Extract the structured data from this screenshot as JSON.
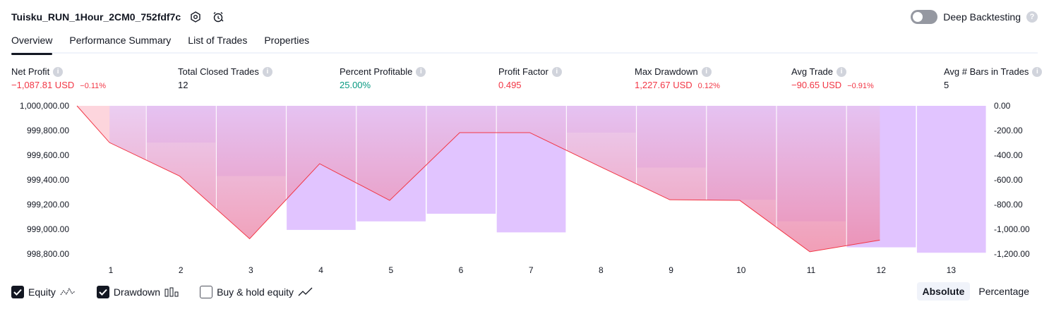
{
  "header": {
    "title": "Tuisku_RUN_1Hour_2CM0_752fdf7c",
    "settings_icon": "settings-hexagon-icon",
    "alarm_icon": "alarm-clock-icon"
  },
  "deep_backtesting": {
    "label": "Deep Backtesting",
    "enabled": false,
    "help": "?"
  },
  "tabs": [
    {
      "label": "Overview",
      "active": true
    },
    {
      "label": "Performance Summary",
      "active": false
    },
    {
      "label": "List of Trades",
      "active": false
    },
    {
      "label": "Properties",
      "active": false
    }
  ],
  "stats": [
    {
      "label": "Net Profit",
      "value": "−1,087.81 USD",
      "pct": "−0.11%",
      "color": "#f23645"
    },
    {
      "label": "Total Closed Trades",
      "value": "12",
      "pct": "",
      "color": "#131722"
    },
    {
      "label": "Percent Profitable",
      "value": "25.00%",
      "pct": "",
      "color": "#089981"
    },
    {
      "label": "Profit Factor",
      "value": "0.495",
      "pct": "",
      "color": "#f23645"
    },
    {
      "label": "Max Drawdown",
      "value": "1,227.67 USD",
      "pct": "0.12%",
      "color": "#f23645"
    },
    {
      "label": "Avg Trade",
      "value": "−90.65 USD",
      "pct": "−0.91%",
      "color": "#f23645"
    },
    {
      "label": "Avg # Bars in Trades",
      "value": "5",
      "pct": "",
      "color": "#131722"
    }
  ],
  "info_glyph": "i",
  "chart_data": {
    "type": "line",
    "categories": [
      "1",
      "2",
      "3",
      "4",
      "5",
      "6",
      "7",
      "8",
      "9",
      "10",
      "11",
      "12",
      "13"
    ],
    "left_axis": {
      "ticks": [
        "1,000,000.00",
        "999,800.00",
        "999,600.00",
        "999,400.00",
        "999,200.00",
        "999,000.00",
        "998,800.00"
      ],
      "range": [
        998800,
        1000000
      ]
    },
    "right_axis": {
      "ticks": [
        "0.00",
        "-200.00",
        "-400.00",
        "-600.00",
        "-800.00",
        "-1,000.00",
        "-1,200.00"
      ],
      "range": [
        -1200,
        0
      ]
    },
    "series": [
      {
        "name": "Equity",
        "values": [
          1000000,
          999702,
          999431,
          998923,
          999531,
          999234,
          999783,
          999783,
          999509,
          999239,
          999234,
          998818,
          998912
        ]
      },
      {
        "name": "Drawdown",
        "values": [
          0,
          -298,
          -569,
          -1005,
          -936,
          -874,
          -1025,
          -217,
          -500,
          -761,
          -935,
          -1146,
          -1190
        ]
      }
    ],
    "colors": {
      "equity_line": "#f23645",
      "drawdown_bar": "#e1c4ff",
      "equity_fill_top": "#e6c2ef",
      "equity_fill_bottom": "#ee87a5",
      "area_light": "#ffd6da"
    }
  },
  "legend": [
    {
      "label": "Equity",
      "checked": true,
      "icon": "equity-line-icon"
    },
    {
      "label": "Drawdown",
      "checked": true,
      "icon": "drawdown-bars-icon"
    },
    {
      "label": "Buy & hold equity",
      "checked": false,
      "icon": "buy-hold-line-icon"
    }
  ],
  "view_modes": [
    {
      "label": "Absolute",
      "active": true
    },
    {
      "label": "Percentage",
      "active": false
    }
  ]
}
